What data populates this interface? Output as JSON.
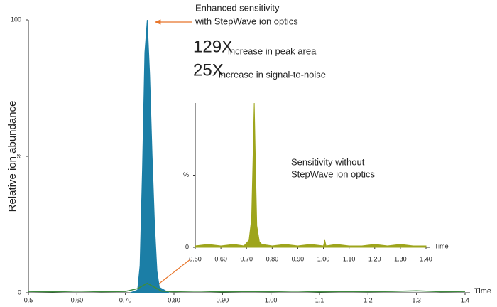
{
  "chart_data": [
    {
      "type": "area",
      "ylabel": "Relative ion abundance",
      "xlabel": "Time",
      "annotations": [
        "Enhanced sensitivity",
        "with StepWave ion optics",
        "129X",
        "increase in peak area",
        "25X",
        "increase in signal-to-noise"
      ],
      "xlim": [
        0.5,
        1.4
      ],
      "ylim": [
        0,
        100
      ],
      "xticks": [
        0.5,
        {
          "value": 0.6,
          "label": "0.60"
        },
        {
          "value": 0.7,
          "label": "0.70"
        },
        {
          "value": 0.8,
          "label": "0.80"
        },
        {
          "value": 0.9,
          "label": "0.90"
        },
        {
          "value": 1.0,
          "label": "1.00"
        },
        1.1,
        1.2,
        1.3,
        1.4
      ],
      "yticks": [
        0,
        {
          "value": 50,
          "label": "%"
        },
        100
      ],
      "series": [
        {
          "color": "#1b7ea6",
          "fill": true,
          "x": [
            0.71,
            0.725,
            0.73,
            0.735,
            0.74,
            0.745,
            0.75,
            0.755,
            0.76,
            0.765,
            0.77,
            0.79
          ],
          "values": [
            0,
            1,
            10,
            45,
            88,
            100,
            80,
            50,
            25,
            8,
            2,
            0
          ]
        },
        {
          "color": "#3d8b3d",
          "fill": false,
          "x": [
            0.5,
            0.55,
            0.6,
            0.65,
            0.7,
            0.725,
            0.745,
            0.76,
            0.775,
            0.8,
            0.85,
            0.9,
            0.95,
            1.0,
            1.05,
            1.1,
            1.15,
            1.2,
            1.25,
            1.3,
            1.35,
            1.4
          ],
          "values": [
            0.5,
            0.3,
            0.6,
            0.4,
            0.5,
            1.5,
            3.5,
            2,
            0.6,
            0.4,
            0.6,
            0.3,
            0.5,
            0.4,
            0.6,
            0.3,
            0.5,
            0.4,
            0.5,
            0.7,
            0.4,
            0.5
          ]
        }
      ]
    },
    {
      "type": "area",
      "xlabel": "Time",
      "annotations": [
        "Sensitivity without",
        "StepWave ion optics"
      ],
      "xlim": [
        0.5,
        1.4
      ],
      "ylim": [
        0,
        100
      ],
      "xticks": [
        {
          "value": 0.5,
          "label": "0.50"
        },
        {
          "value": 0.6,
          "label": "0.60"
        },
        {
          "value": 0.7,
          "label": "0.70"
        },
        {
          "value": 0.8,
          "label": "0.80"
        },
        {
          "value": 0.9,
          "label": "0.90"
        },
        {
          "value": 1.0,
          "label": "1.00"
        },
        {
          "value": 1.1,
          "label": "1.10"
        },
        {
          "value": 1.2,
          "label": "1.20"
        },
        {
          "value": 1.3,
          "label": "1.30"
        },
        {
          "value": 1.4,
          "label": "1.40"
        }
      ],
      "yticks": [
        0,
        {
          "value": 50,
          "label": "%"
        }
      ],
      "series": [
        {
          "color": "#9ea51c",
          "fill": true,
          "x": [
            0.5,
            0.55,
            0.6,
            0.65,
            0.69,
            0.7,
            0.71,
            0.72,
            0.725,
            0.73,
            0.735,
            0.74,
            0.75,
            0.76,
            0.8,
            0.85,
            0.9,
            0.95,
            1.0,
            1.005,
            1.01,
            1.05,
            1.1,
            1.15,
            1.2,
            1.25,
            1.3,
            1.35,
            1.4
          ],
          "values": [
            1,
            2,
            1,
            2,
            1,
            3,
            5,
            20,
            60,
            100,
            55,
            15,
            4,
            2,
            1,
            2,
            1,
            2,
            1,
            5,
            1,
            2,
            1,
            1,
            2,
            1,
            2,
            1,
            1
          ]
        }
      ]
    }
  ]
}
